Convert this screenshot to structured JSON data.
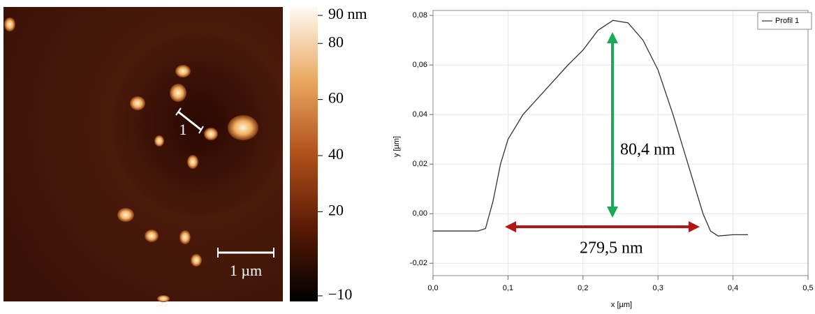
{
  "chart_data": [
    {
      "type": "colorbar",
      "scale_bar": "1 µm",
      "profile_marker": "1",
      "ylim": [
        -12,
        93
      ],
      "yticks": [
        {
          "value": 90,
          "label": "90 nm"
        },
        80,
        60,
        40,
        20,
        {
          "value": -10,
          "label": "−10"
        }
      ]
    },
    {
      "type": "line",
      "xlabel": "x [µm]",
      "ylabel": "y [µm]",
      "x": [
        0,
        0.06,
        0.07,
        0.08,
        0.09,
        0.1,
        0.12,
        0.15,
        0.18,
        0.2,
        0.22,
        0.24,
        0.26,
        0.28,
        0.3,
        0.32,
        0.34,
        0.36,
        0.37,
        0.38,
        0.4,
        0.42
      ],
      "series": [
        {
          "name": "Profil 1",
          "color": "#333333",
          "values": [
            -0.007,
            -0.007,
            -0.006,
            0.005,
            0.02,
            0.03,
            0.04,
            0.05,
            0.06,
            0.066,
            0.074,
            0.078,
            0.077,
            0.07,
            0.058,
            0.04,
            0.02,
            0.0,
            -0.007,
            -0.009,
            -0.0085,
            -0.0085
          ]
        }
      ],
      "xlim": [
        0,
        0.5
      ],
      "ylim": [
        -0.025,
        0.082
      ],
      "xticks": [
        {
          "value": 0,
          "label": "0,0"
        },
        {
          "value": 0.1,
          "label": "0,1"
        },
        {
          "value": 0.2,
          "label": "0,2"
        },
        {
          "value": 0.3,
          "label": "0,3"
        },
        {
          "value": 0.4,
          "label": "0,4"
        },
        {
          "value": 0.5,
          "label": "0,5"
        }
      ],
      "yticks": [
        {
          "value": -0.02,
          "label": "-0,02"
        },
        {
          "value": 0,
          "label": "0,00"
        },
        {
          "value": 0.02,
          "label": "0,02"
        },
        {
          "value": 0.04,
          "label": "0,04"
        },
        {
          "value": 0.06,
          "label": "0,06"
        },
        {
          "value": 0.08,
          "label": "0,08"
        }
      ],
      "grid": true,
      "legend": "upper right",
      "annotations": [
        "80,4 nm",
        "279,5 nm"
      ]
    }
  ]
}
